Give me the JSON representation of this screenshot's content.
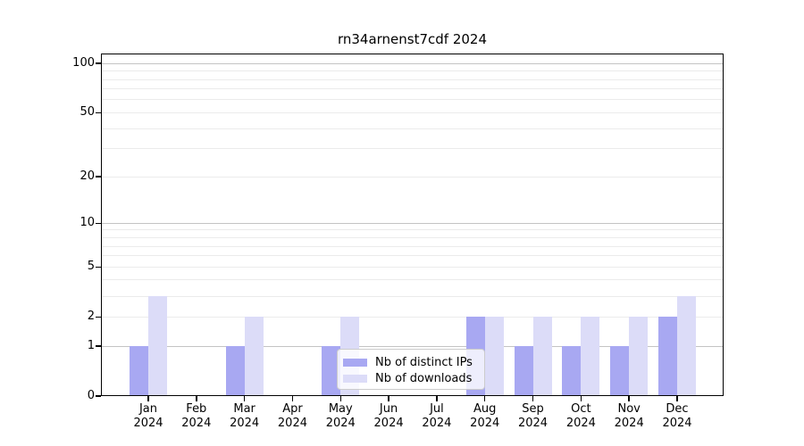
{
  "title": "rn34arnenst7cdf 2024",
  "chart_data": {
    "type": "bar",
    "title": "rn34arnenst7cdf 2024",
    "categories": [
      "Jan",
      "Feb",
      "Mar",
      "Apr",
      "May",
      "Jun",
      "Jul",
      "Aug",
      "Sep",
      "Oct",
      "Nov",
      "Dec"
    ],
    "x_tick_year": "2024",
    "series": [
      {
        "name": "Nb of distinct IPs",
        "color": "#a8a8f2",
        "values": [
          1,
          0,
          1,
          0,
          1,
          0,
          0,
          2,
          1,
          1,
          1,
          2
        ]
      },
      {
        "name": "Nb of downloads",
        "color": "#dcdcf8",
        "values": [
          3,
          0,
          2,
          0,
          2,
          0,
          0,
          2,
          2,
          2,
          2,
          3
        ]
      }
    ],
    "xlabel": "",
    "ylabel": "",
    "yscale": "log(1+x)",
    "ylim": [
      0,
      115
    ],
    "y_ticks": [
      0,
      1,
      2,
      5,
      10,
      20,
      50,
      100
    ],
    "y_gridlines_major": [
      1,
      10,
      100
    ],
    "y_gridlines_minor": [
      2,
      3,
      4,
      5,
      6,
      7,
      8,
      9,
      20,
      30,
      40,
      50,
      60,
      70,
      80,
      90
    ],
    "legend_position": "lower center-left inside plot",
    "grid": "horizontal only"
  }
}
